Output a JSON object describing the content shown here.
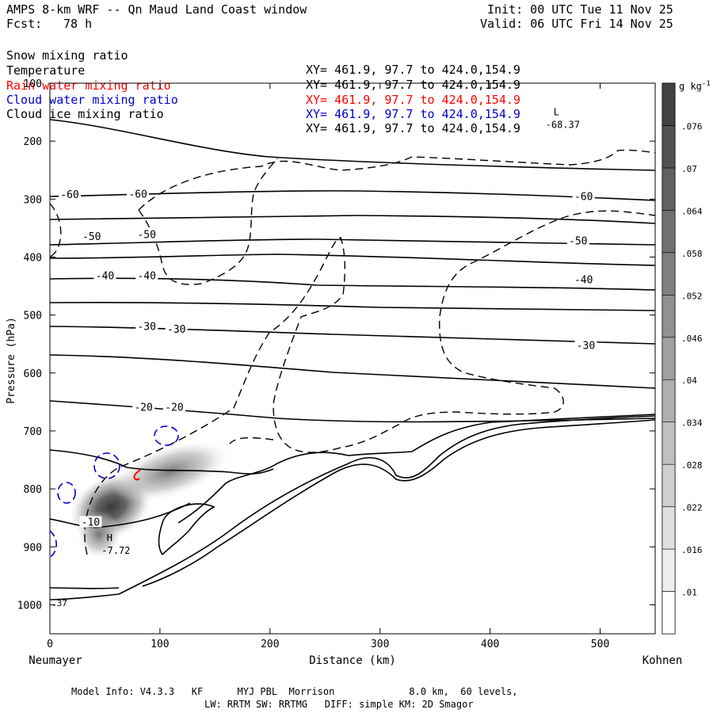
{
  "header": {
    "title": "AMPS 8-km WRF -- Qn Maud Land Coast window",
    "init": "Init: 00 UTC Tue 11 Nov 25",
    "fcst_label": "Fcst:",
    "fcst_value": "78 h",
    "valid": "Valid: 06 UTC Fri 14 Nov 25"
  },
  "fields": [
    {
      "name": "Snow mixing ratio",
      "xy": "XY= 461.9, 97.7 to 424.0,154.9",
      "color": "#000000"
    },
    {
      "name": "Temperature",
      "xy": "XY= 461.9, 97.7 to 424.0,154.9",
      "color": "#000000"
    },
    {
      "name": "Rain water mixing ratio",
      "xy": "XY= 461.9, 97.7 to 424.0,154.9",
      "color": "#ff0000"
    },
    {
      "name": "Cloud water mixing ratio",
      "xy": "XY= 461.9, 97.7 to 424.0,154.9",
      "color": "#0000cc"
    },
    {
      "name": "Cloud ice mixing ratio",
      "xy": "XY= 461.9, 97.7 to 424.0,154.9",
      "color": "#000000"
    }
  ],
  "chart_data": {
    "type": "contour",
    "xlabel": "Distance (km)",
    "ylabel": "Pressure (hPa)",
    "xlim": [
      0,
      550
    ],
    "ylim": [
      1050,
      100
    ],
    "x_ticks": [
      0,
      100,
      200,
      300,
      400,
      500
    ],
    "y_ticks": [
      100,
      200,
      300,
      400,
      500,
      600,
      700,
      800,
      900,
      1000
    ],
    "x_start_label": "Neumayer",
    "x_end_label": "Kohnen",
    "colorbar": {
      "unit": "g kg",
      "unit_exp": "-1",
      "levels": [
        ".01",
        ".016",
        ".022",
        ".028",
        ".034",
        ".04",
        ".046",
        ".052",
        ".058",
        ".064",
        ".07",
        ".076"
      ]
    },
    "temperature_isotherms": [
      {
        "label": "-60",
        "points": [
          [
            0,
            330
          ],
          [
            100,
            333
          ],
          [
            250,
            332
          ],
          [
            400,
            333
          ],
          [
            550,
            338
          ]
        ]
      },
      {
        "label": "-60",
        "points": [
          [
            0,
            293
          ],
          [
            100,
            290
          ],
          [
            200,
            288
          ],
          [
            300,
            284
          ],
          [
            400,
            287
          ],
          [
            550,
            296
          ]
        ]
      },
      {
        "label": "-50",
        "points": [
          [
            0,
            400
          ],
          [
            100,
            390
          ],
          [
            200,
            378
          ],
          [
            300,
            364
          ],
          [
            400,
            360
          ],
          [
            550,
            372
          ]
        ]
      },
      {
        "label": "-50",
        "points": [
          [
            0,
            365
          ],
          [
            100,
            360
          ],
          [
            200,
            352
          ],
          [
            300,
            360
          ],
          [
            400,
            370
          ],
          [
            550,
            372
          ]
        ]
      },
      {
        "label": "-40",
        "points": [
          [
            0,
            435
          ],
          [
            100,
            430
          ],
          [
            200,
            428
          ],
          [
            300,
            430
          ],
          [
            400,
            432
          ],
          [
            550,
            435
          ]
        ]
      },
      {
        "label": "-40",
        "points": [
          [
            0,
            478
          ],
          [
            100,
            478
          ],
          [
            200,
            480
          ],
          [
            300,
            478
          ],
          [
            400,
            477
          ],
          [
            550,
            478
          ]
        ]
      },
      {
        "label": "-30",
        "points": [
          [
            0,
            518
          ],
          [
            100,
            518
          ],
          [
            200,
            522
          ],
          [
            300,
            530
          ],
          [
            400,
            540
          ],
          [
            550,
            552
          ]
        ]
      },
      {
        "label": "-30",
        "points": [
          [
            0,
            560
          ],
          [
            100,
            562
          ],
          [
            200,
            570
          ],
          [
            300,
            580
          ],
          [
            400,
            585
          ],
          [
            550,
            597
          ]
        ]
      },
      {
        "label": "-20",
        "points": [
          [
            0,
            648
          ],
          [
            100,
            660
          ],
          [
            200,
            668
          ],
          [
            300,
            672
          ],
          [
            400,
            678
          ],
          [
            550,
            680
          ]
        ]
      },
      {
        "label": "",
        "points": [
          [
            0,
            168
          ],
          [
            100,
            180
          ],
          [
            200,
            222
          ],
          [
            300,
            230
          ],
          [
            400,
            238
          ],
          [
            550,
            247
          ]
        ]
      }
    ],
    "isotherm_labels": [
      {
        "text": "-60",
        "x": 18,
        "p": 293
      },
      {
        "text": "-60",
        "x": 80,
        "p": 292
      },
      {
        "text": "-60",
        "x": 485,
        "p": 296
      },
      {
        "text": "-50",
        "x": 38,
        "p": 365
      },
      {
        "text": "-50",
        "x": 88,
        "p": 362
      },
      {
        "text": "-50",
        "x": 480,
        "p": 373
      },
      {
        "text": "-40",
        "x": 50,
        "p": 433
      },
      {
        "text": "-40",
        "x": 88,
        "p": 433
      },
      {
        "text": "-40",
        "x": 485,
        "p": 440
      },
      {
        "text": "-30",
        "x": 88,
        "p": 520
      },
      {
        "text": "-30",
        "x": 115,
        "p": 525
      },
      {
        "text": "-30",
        "x": 487,
        "p": 553
      },
      {
        "text": "-20",
        "x": 85,
        "p": 660
      },
      {
        "text": "-20",
        "x": 113,
        "p": 660
      },
      {
        "text": "-10",
        "x": 37,
        "p": 858
      }
    ],
    "extrema": [
      {
        "type": "L",
        "value": "-68.37",
        "x": 466,
        "p": 180
      },
      {
        "type": "H",
        "value": "-7.72",
        "x": 60,
        "p": 915
      }
    ],
    "corner_label": ".37",
    "snow_max_center": [
      60,
      835
    ]
  },
  "footer": {
    "line1": "Model Info: V4.3.3   KF      MYJ PBL  Morrison             8.0 km,  60 levels,",
    "line2": "LW: RRTM SW: RRTMG   DIFF: simple KM: 2D Smagor"
  }
}
